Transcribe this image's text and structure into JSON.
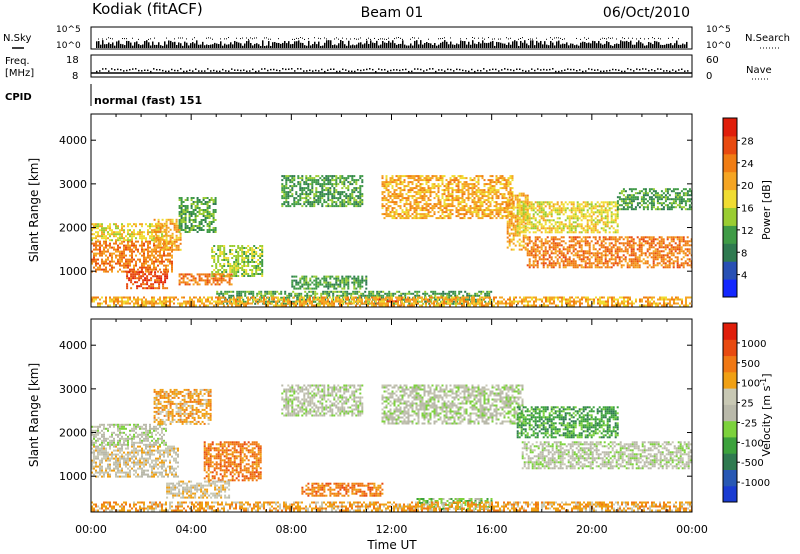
{
  "header": {
    "station": "Kodiak (fitACF)",
    "beam": "Beam 01",
    "date": "06/Oct/2010"
  },
  "aux": {
    "nsky_label": "N.Sky",
    "nsearch_label": "N.Search",
    "freq_label_line1": "Freq.",
    "freq_label_line2": "[MHz]",
    "nave_label": "Nave",
    "cpid_label": "CPID",
    "cpid_value": "normal (fast) 151",
    "noise_ticks": [
      "10^5",
      "10^0"
    ],
    "freq_ticks": [
      "18",
      "8"
    ],
    "nave_ticks": [
      "60",
      "0"
    ]
  },
  "colors": {
    "power_scale": [
      "#1428ff",
      "#2850b4",
      "#2f7a50",
      "#3f9b46",
      "#9acd32",
      "#f0dc32",
      "#f5a523",
      "#f07d14",
      "#e84a10",
      "#e01e0a"
    ],
    "velocity_scale": [
      "#1a3cd2",
      "#2858b4",
      "#2f7a50",
      "#3ca23c",
      "#7cd23c",
      "#b9b9aa",
      "#c8c8b4",
      "#f0a014",
      "#f07814",
      "#e84a10",
      "#e01e0a"
    ]
  },
  "chart_data": [
    {
      "type": "heatmap",
      "name": "power-panel",
      "xlabel": "",
      "ylabel": "Slant Range [km]",
      "x_ticks": [
        "00:00",
        "04:00",
        "08:00",
        "12:00",
        "16:00",
        "20:00",
        "00:00"
      ],
      "xlim_hours": [
        0,
        24
      ],
      "y_ticks": [
        "4000",
        "3000",
        "2000",
        "1000"
      ],
      "y_tick_values": [
        4000,
        3000,
        2000,
        1000
      ],
      "ylim": [
        180,
        4600
      ],
      "colorbar_label": "Power [dB]",
      "colorbar_ticks": [
        "28",
        "24",
        "20",
        "16",
        "12",
        "8",
        "4"
      ],
      "colorbar_range": [
        0,
        32
      ],
      "features": [
        {
          "t": [
            0.0,
            3.2
          ],
          "r": [
            1000,
            1700
          ],
          "value": 26
        },
        {
          "t": [
            0.0,
            3.0
          ],
          "r": [
            1700,
            2100
          ],
          "value": 18
        },
        {
          "t": [
            2.5,
            3.6
          ],
          "r": [
            1500,
            2200
          ],
          "value": 22
        },
        {
          "t": [
            3.5,
            5.0
          ],
          "r": [
            1900,
            2700
          ],
          "value": 10
        },
        {
          "t": [
            4.8,
            6.8
          ],
          "r": [
            900,
            1600
          ],
          "value": 14
        },
        {
          "t": [
            1.4,
            3.0
          ],
          "r": [
            600,
            1000
          ],
          "value": 27
        },
        {
          "t": [
            3.5,
            5.6
          ],
          "r": [
            700,
            950
          ],
          "value": 26
        },
        {
          "t": [
            7.6,
            10.8
          ],
          "r": [
            2500,
            3200
          ],
          "value": 10
        },
        {
          "t": [
            11.6,
            16.8
          ],
          "r": [
            2200,
            3200
          ],
          "value": 20
        },
        {
          "t": [
            16.6,
            17.4
          ],
          "r": [
            1500,
            2800
          ],
          "value": 22
        },
        {
          "t": [
            17.4,
            24.0
          ],
          "r": [
            1100,
            1800
          ],
          "value": 24
        },
        {
          "t": [
            17.0,
            21.0
          ],
          "r": [
            1900,
            2600
          ],
          "value": 16
        },
        {
          "t": [
            21.0,
            24.0
          ],
          "r": [
            2400,
            2900
          ],
          "value": 12
        },
        {
          "t": [
            8.0,
            11.0
          ],
          "r": [
            600,
            900
          ],
          "value": 12
        },
        {
          "t": [
            5.0,
            16.0
          ],
          "r": [
            250,
            550
          ],
          "value": 12
        },
        {
          "t": [
            11.4,
            12.4
          ],
          "r": [
            200,
            380
          ],
          "value": 28
        },
        {
          "t": [
            0.0,
            24.0
          ],
          "r": [
            180,
            420
          ],
          "value": 20
        }
      ]
    },
    {
      "type": "heatmap",
      "name": "velocity-panel",
      "xlabel": "Time UT",
      "ylabel": "Slant Range [km]",
      "x_ticks": [
        "00:00",
        "04:00",
        "08:00",
        "12:00",
        "16:00",
        "20:00",
        "00:00"
      ],
      "xlim_hours": [
        0,
        24
      ],
      "y_ticks": [
        "4000",
        "3000",
        "2000",
        "1000"
      ],
      "y_tick_values": [
        4000,
        3000,
        2000,
        1000
      ],
      "ylim": [
        180,
        4600
      ],
      "colorbar_label": "Velocity [m s-1]",
      "colorbar_ticks": [
        "1000",
        "500",
        "100",
        "25",
        "-25",
        "-100",
        "-500",
        "-1000"
      ],
      "features": [
        {
          "t": [
            0.0,
            3.5
          ],
          "r": [
            1000,
            1700
          ],
          "level": 6
        },
        {
          "t": [
            0.0,
            3.0
          ],
          "r": [
            1700,
            2200
          ],
          "level": 5
        },
        {
          "t": [
            2.5,
            4.8
          ],
          "r": [
            2200,
            3000
          ],
          "level": 7
        },
        {
          "t": [
            4.5,
            6.8
          ],
          "r": [
            900,
            1800
          ],
          "level": 8
        },
        {
          "t": [
            3.0,
            5.5
          ],
          "r": [
            500,
            900
          ],
          "level": 6
        },
        {
          "t": [
            7.6,
            10.8
          ],
          "r": [
            2400,
            3100
          ],
          "level": 5
        },
        {
          "t": [
            11.6,
            17.2
          ],
          "r": [
            2200,
            3100
          ],
          "level": 5
        },
        {
          "t": [
            17.2,
            24.0
          ],
          "r": [
            1200,
            1800
          ],
          "level": 5
        },
        {
          "t": [
            17.0,
            21.0
          ],
          "r": [
            1900,
            2600
          ],
          "level": 3
        },
        {
          "t": [
            8.4,
            11.6
          ],
          "r": [
            550,
            850
          ],
          "level": 8
        },
        {
          "t": [
            13.0,
            16.0
          ],
          "r": [
            250,
            500
          ],
          "level": 4
        },
        {
          "t": [
            0.0,
            24.0
          ],
          "r": [
            180,
            420
          ],
          "level": 7
        }
      ]
    }
  ]
}
